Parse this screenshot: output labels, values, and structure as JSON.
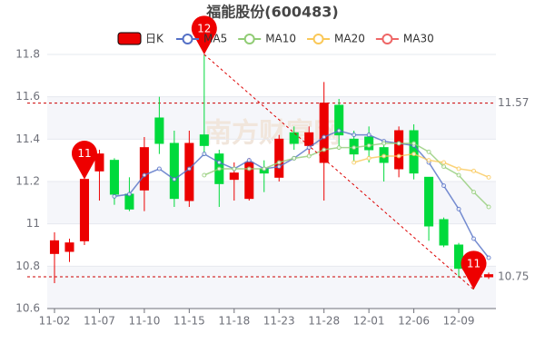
{
  "chart_data": {
    "type": "candlestick",
    "title": "福能股份(600483)",
    "watermark": "南方财富网",
    "categories": [
      "11-02",
      null,
      null,
      "11-07",
      null,
      null,
      "11-10",
      null,
      null,
      "11-15",
      null,
      null,
      "11-18",
      null,
      null,
      "11-23",
      null,
      null,
      "11-28",
      null,
      null,
      "12-01",
      null,
      null,
      "12-06",
      null,
      null,
      "12-09",
      null,
      null
    ],
    "candles": {
      "name": "日K",
      "up_color": "#ec0000",
      "down_color": "#00da3c",
      "open": [
        10.86,
        10.87,
        10.92,
        11.25,
        11.3,
        11.14,
        11.16,
        11.5,
        11.38,
        11.11,
        11.42,
        11.33,
        11.21,
        11.12,
        11.26,
        11.22,
        11.43,
        11.37,
        11.29,
        11.56,
        11.4,
        11.41,
        11.36,
        11.26,
        11.44,
        11.22,
        11.02,
        10.9,
        10.77,
        10.75
      ],
      "close": [
        10.92,
        10.91,
        11.21,
        11.33,
        11.14,
        11.07,
        11.36,
        11.38,
        11.12,
        11.38,
        11.37,
        11.19,
        11.24,
        11.29,
        11.24,
        11.4,
        11.38,
        11.43,
        11.57,
        11.42,
        11.33,
        11.35,
        11.29,
        11.44,
        11.24,
        10.99,
        10.9,
        10.79,
        10.76,
        10.76
      ],
      "high": [
        10.96,
        10.93,
        11.21,
        11.35,
        11.31,
        11.22,
        11.41,
        11.6,
        11.44,
        11.44,
        11.8,
        11.35,
        11.29,
        11.31,
        11.3,
        11.42,
        11.46,
        11.46,
        11.67,
        11.59,
        11.44,
        11.46,
        11.39,
        11.46,
        11.47,
        11.22,
        11.03,
        10.91,
        10.78,
        10.77
      ],
      "low": [
        10.72,
        10.82,
        10.9,
        11.11,
        11.09,
        11.06,
        11.06,
        11.33,
        11.08,
        11.08,
        11.32,
        11.08,
        11.11,
        11.11,
        11.15,
        11.2,
        11.35,
        11.33,
        11.11,
        11.35,
        11.29,
        11.29,
        11.2,
        11.22,
        11.21,
        10.92,
        10.89,
        10.75,
        10.69,
        10.74
      ]
    },
    "series": [
      {
        "name": "MA5",
        "color": "#5470c6",
        "values": [
          null,
          null,
          null,
          null,
          11.13,
          11.14,
          11.23,
          11.26,
          11.21,
          11.26,
          11.33,
          11.29,
          11.26,
          11.3,
          11.26,
          11.27,
          11.31,
          11.36,
          11.41,
          11.44,
          11.42,
          11.42,
          11.39,
          11.38,
          11.37,
          11.29,
          11.18,
          11.07,
          10.93,
          10.84
        ]
      },
      {
        "name": "MA10",
        "color": "#91cc75",
        "values": [
          null,
          null,
          null,
          null,
          null,
          null,
          null,
          null,
          null,
          null,
          11.23,
          11.26,
          11.26,
          11.26,
          11.26,
          11.29,
          11.31,
          11.32,
          11.35,
          11.36,
          11.36,
          11.37,
          11.38,
          11.38,
          11.38,
          11.34,
          11.27,
          11.23,
          11.15,
          11.08
        ]
      },
      {
        "name": "MA20",
        "color": "#fac858",
        "values": [
          null,
          null,
          null,
          null,
          null,
          null,
          null,
          null,
          null,
          null,
          null,
          null,
          null,
          null,
          null,
          null,
          null,
          null,
          null,
          null,
          11.29,
          11.31,
          11.32,
          11.32,
          11.33,
          11.3,
          11.29,
          11.26,
          11.25,
          11.22
        ]
      },
      {
        "name": "MA30",
        "color": "#ee6666",
        "values": [
          null,
          null,
          null,
          null,
          null,
          null,
          null,
          null,
          null,
          null,
          null,
          null,
          null,
          null,
          null,
          null,
          null,
          null,
          null,
          null,
          null,
          null,
          null,
          null,
          null,
          null,
          null,
          null,
          null,
          null
        ]
      }
    ],
    "markers": [
      {
        "label": "11",
        "value": 11.21
      },
      {
        "label": "12",
        "value": 11.8
      },
      {
        "label": "11",
        "value": 10.69
      }
    ],
    "hlines": [
      11.57,
      10.75
    ],
    "ylim": [
      10.6,
      11.8
    ],
    "yticks": [
      10.6,
      10.8,
      11,
      11.2,
      11.4,
      11.6,
      11.8
    ],
    "grid": true
  }
}
